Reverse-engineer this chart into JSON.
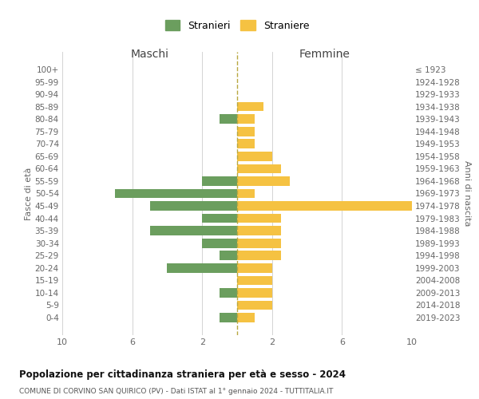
{
  "age_groups": [
    "100+",
    "95-99",
    "90-94",
    "85-89",
    "80-84",
    "75-79",
    "70-74",
    "65-69",
    "60-64",
    "55-59",
    "50-54",
    "45-49",
    "40-44",
    "35-39",
    "30-34",
    "25-29",
    "20-24",
    "15-19",
    "10-14",
    "5-9",
    "0-4"
  ],
  "birth_years": [
    "≤ 1923",
    "1924-1928",
    "1929-1933",
    "1934-1938",
    "1939-1943",
    "1944-1948",
    "1949-1953",
    "1954-1958",
    "1959-1963",
    "1964-1968",
    "1969-1973",
    "1974-1978",
    "1979-1983",
    "1984-1988",
    "1989-1993",
    "1994-1998",
    "1999-2003",
    "2004-2008",
    "2009-2013",
    "2014-2018",
    "2019-2023"
  ],
  "maschi": [
    0,
    0,
    0,
    0,
    1,
    0,
    0,
    0,
    0,
    2,
    7,
    5,
    2,
    5,
    2,
    1,
    4,
    0,
    1,
    0,
    1
  ],
  "femmine": [
    0,
    0,
    0,
    1.5,
    1,
    1,
    1,
    2,
    2.5,
    3,
    1,
    10,
    2.5,
    2.5,
    2.5,
    2.5,
    2,
    2,
    2,
    2,
    1
  ],
  "male_color": "#6b9e5e",
  "female_color": "#f5c242",
  "dashed_line_color": "#b8a840",
  "background_color": "#ffffff",
  "grid_color": "#cccccc",
  "title": "Popolazione per cittadinanza straniera per età e sesso - 2024",
  "subtitle": "COMUNE DI CORVINO SAN QUIRICO (PV) - Dati ISTAT al 1° gennaio 2024 - TUTTITALIA.IT",
  "xlabel_left": "Maschi",
  "xlabel_right": "Femmine",
  "ylabel_left": "Fasce di età",
  "ylabel_right": "Anni di nascita",
  "legend_stranieri": "Stranieri",
  "legend_straniere": "Straniere",
  "xlim": 10
}
